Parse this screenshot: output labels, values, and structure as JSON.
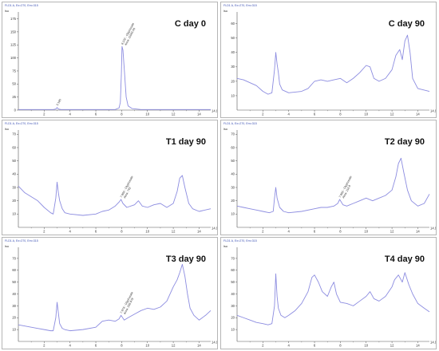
{
  "colors": {
    "trace": "#8c8ce0",
    "axis": "#555555",
    "header": "#3a4fb3"
  },
  "chart_data": [
    {
      "type": "line",
      "title": "C day 0",
      "header": "FLD1 A, Ex=270, Em=315",
      "ylabel": "lsu",
      "xlim": [
        0,
        14.9
      ],
      "ylim": [
        0,
        185
      ],
      "yticks": [
        "0",
        "25",
        "50",
        "75",
        "100",
        "125",
        "150",
        "175"
      ],
      "xticks": [
        "2",
        "4",
        "6",
        "8",
        "10",
        "12",
        "14"
      ],
      "xmax_label": "14.9",
      "peaks": [
        {
          "x": 3.0,
          "label": "3.185"
        },
        {
          "x": 8.03,
          "label": "8.102 - Glyphosate\nArea: 11063.56"
        }
      ],
      "series": [
        {
          "x": [
            0,
            2.7,
            2.9,
            3.0,
            3.1,
            3.3,
            7.5,
            7.8,
            7.9,
            7.98,
            8.03,
            8.1,
            8.2,
            8.35,
            8.5,
            8.8,
            9.5,
            14.9
          ],
          "y": [
            1,
            1,
            2,
            5,
            2,
            1,
            1,
            4,
            15,
            70,
            122,
            115,
            80,
            25,
            8,
            3,
            1,
            1
          ]
        }
      ]
    },
    {
      "type": "line",
      "title": "C day 90",
      "header": "FLD1 A, Ex=270, Em=315",
      "ylabel": "lsu",
      "xlim": [
        0,
        14.9
      ],
      "ylim": [
        0,
        67
      ],
      "yticks": [
        "10",
        "20",
        "30",
        "40",
        "50",
        "60"
      ],
      "xticks": [
        "2",
        "4",
        "6",
        "8",
        "10",
        "12",
        "14"
      ],
      "xmax_label": "14.9",
      "peaks": [],
      "series": [
        {
          "x": [
            0,
            0.5,
            1,
            1.5,
            2,
            2.4,
            2.7,
            2.9,
            3.0,
            3.1,
            3.2,
            3.3,
            3.5,
            4,
            5,
            5.5,
            6,
            6.5,
            7,
            7.5,
            8,
            8.5,
            9,
            9.5,
            10,
            10.3,
            10.6,
            11,
            11.5,
            12,
            12.3,
            12.6,
            12.8,
            13,
            13.2,
            13.4,
            13.6,
            14,
            14.9
          ],
          "y": [
            22,
            21,
            19,
            17,
            13,
            11,
            12,
            28,
            40,
            32,
            26,
            18,
            14,
            12,
            13,
            15,
            20,
            21,
            20,
            21,
            22,
            19,
            22,
            26,
            31,
            30,
            22,
            20,
            22,
            28,
            38,
            42,
            35,
            48,
            52,
            40,
            22,
            15,
            13
          ]
        }
      ]
    },
    {
      "type": "line",
      "title": "T1 day 90",
      "header": "FLD1 A, Ex=270, Em=315",
      "ylabel": "lsu",
      "xlim": [
        0,
        14.9
      ],
      "ylim": [
        0,
        72
      ],
      "yticks": [
        "10",
        "20",
        "30",
        "40",
        "50",
        "60",
        "70"
      ],
      "xticks": [
        "2",
        "4",
        "6",
        "8",
        "10",
        "12",
        "14"
      ],
      "xmax_label": "14.9",
      "peaks": [
        {
          "x": 7.95,
          "label": "7.983 - Glyphosate\nArea: 762"
        }
      ],
      "series": [
        {
          "x": [
            0,
            0.5,
            1,
            1.5,
            2,
            2.5,
            2.7,
            2.9,
            3.0,
            3.1,
            3.2,
            3.4,
            3.6,
            4,
            5,
            6,
            6.5,
            7,
            7.5,
            7.8,
            7.95,
            8.1,
            8.4,
            9,
            9.3,
            9.6,
            10,
            10.5,
            11,
            11.5,
            12,
            12.3,
            12.5,
            12.7,
            12.9,
            13.2,
            13.5,
            14,
            14.9
          ],
          "y": [
            31,
            26,
            23,
            20,
            15,
            11,
            10,
            22,
            34,
            26,
            20,
            14,
            11,
            10,
            9,
            10,
            12,
            13,
            16,
            19,
            21,
            18,
            15,
            17,
            20,
            16,
            15,
            17,
            18,
            15,
            18,
            27,
            37,
            39,
            30,
            18,
            14,
            12,
            14
          ]
        }
      ]
    },
    {
      "type": "line",
      "title": "T2 day 90",
      "header": "FLD1 A, Ex=270, Em=315",
      "ylabel": "lsu",
      "xlim": [
        0,
        14.9
      ],
      "ylim": [
        0,
        72
      ],
      "yticks": [
        "10",
        "20",
        "30",
        "40",
        "50",
        "60",
        "70"
      ],
      "xticks": [
        "2",
        "4",
        "6",
        "8",
        "10",
        "12",
        "14"
      ],
      "xmax_label": "14.9",
      "peaks": [
        {
          "x": 7.95,
          "label": "7.983 - Glyphosate\nArea: 116.8"
        }
      ],
      "series": [
        {
          "x": [
            0,
            0.5,
            1,
            1.5,
            2,
            2.5,
            2.8,
            2.9,
            3.0,
            3.1,
            3.3,
            3.6,
            4,
            5,
            6,
            6.5,
            7,
            7.5,
            7.8,
            7.95,
            8.2,
            8.5,
            9,
            9.5,
            10,
            10.5,
            11,
            11.5,
            12,
            12.3,
            12.5,
            12.7,
            12.9,
            13.2,
            13.5,
            14,
            14.5,
            14.9
          ],
          "y": [
            16,
            15,
            14,
            13,
            12,
            11,
            12,
            22,
            30,
            22,
            15,
            12,
            11,
            12,
            14,
            15,
            15,
            16,
            18,
            21,
            17,
            16,
            18,
            20,
            22,
            20,
            22,
            24,
            28,
            38,
            48,
            52,
            42,
            28,
            20,
            16,
            18,
            25
          ]
        }
      ]
    },
    {
      "type": "line",
      "title": "T3 day 90",
      "header": "FLD1 A, Ex=270, Em=315",
      "ylabel": "lsu",
      "xlim": [
        0,
        14.9
      ],
      "ylim": [
        0,
        78
      ],
      "yticks": [
        "10",
        "20",
        "30",
        "40",
        "50",
        "60",
        "70"
      ],
      "xticks": [
        "2",
        "4",
        "6",
        "8",
        "10",
        "12",
        "14"
      ],
      "xmax_label": "14.9",
      "peaks": [
        {
          "x": 7.95,
          "label": "7.978 - Glyphosate\nArea: 338.978"
        }
      ],
      "series": [
        {
          "x": [
            0,
            0.5,
            1,
            1.5,
            2,
            2.5,
            2.7,
            2.9,
            3.0,
            3.1,
            3.2,
            3.4,
            3.6,
            4,
            5,
            6,
            6.5,
            7,
            7.5,
            7.8,
            7.95,
            8.2,
            8.5,
            9,
            9.5,
            10,
            10.5,
            11,
            11.5,
            12,
            12.3,
            12.5,
            12.7,
            12.9,
            13.1,
            13.3,
            13.6,
            14,
            14.5,
            14.9
          ],
          "y": [
            14,
            13,
            12,
            11,
            10,
            9,
            9,
            20,
            33,
            24,
            15,
            11,
            10,
            9,
            10,
            12,
            17,
            18,
            17,
            19,
            22,
            18,
            20,
            23,
            26,
            28,
            27,
            29,
            34,
            46,
            52,
            58,
            65,
            55,
            40,
            28,
            22,
            18,
            22,
            26
          ]
        }
      ]
    },
    {
      "type": "line",
      "title": "T4 day 90",
      "header": "FLD1 A, Ex=270, Em=315",
      "ylabel": "lsu",
      "xlim": [
        0,
        14.9
      ],
      "ylim": [
        0,
        78
      ],
      "yticks": [
        "10",
        "20",
        "30",
        "40",
        "50",
        "60",
        "70"
      ],
      "xticks": [
        "2",
        "4",
        "6",
        "8",
        "10",
        "12",
        "14"
      ],
      "xmax_label": "14.9",
      "peaks": [],
      "series": [
        {
          "x": [
            0,
            0.5,
            1,
            1.5,
            2,
            2.4,
            2.7,
            2.9,
            3.0,
            3.1,
            3.2,
            3.4,
            3.7,
            4,
            4.5,
            5,
            5.5,
            5.8,
            6,
            6.3,
            6.6,
            7,
            7.3,
            7.5,
            7.7,
            8,
            8.5,
            9,
            9.5,
            10,
            10.3,
            10.6,
            11,
            11.5,
            12,
            12.2,
            12.5,
            12.8,
            13,
            13.3,
            13.6,
            14,
            14.5,
            14.9
          ],
          "y": [
            22,
            20,
            18,
            16,
            15,
            14,
            15,
            30,
            57,
            38,
            28,
            22,
            20,
            22,
            26,
            32,
            42,
            54,
            56,
            50,
            42,
            38,
            46,
            50,
            40,
            33,
            32,
            30,
            34,
            38,
            42,
            36,
            34,
            38,
            46,
            52,
            56,
            50,
            58,
            48,
            40,
            32,
            28,
            25
          ]
        }
      ]
    }
  ]
}
